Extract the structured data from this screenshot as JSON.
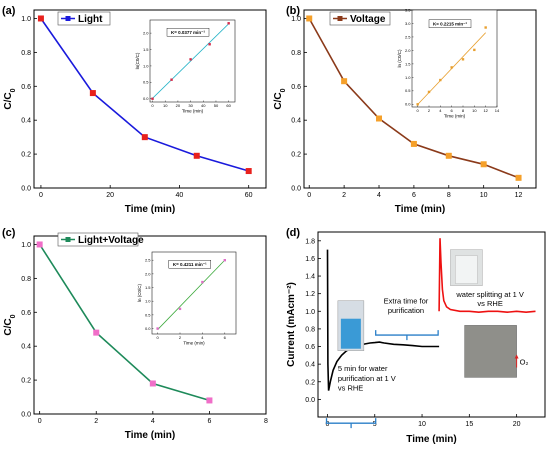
{
  "chart_data": [
    {
      "panel": "(a)",
      "type": "line",
      "xlabel": "Time (min)",
      "ylabel": "C/C0",
      "xlim": [
        -2,
        65
      ],
      "ylim": [
        0,
        1.05
      ],
      "xticks": [
        0,
        20,
        40,
        60
      ],
      "yticks": [
        0.0,
        0.2,
        0.4,
        0.6,
        0.8,
        1.0
      ],
      "color": "#1a1adc",
      "marker": "#e8211d",
      "legend": "top-left",
      "series": [
        {
          "name": "Light",
          "x": [
            0,
            15,
            30,
            45,
            60
          ],
          "y": [
            1.0,
            0.56,
            0.3,
            0.19,
            0.1
          ]
        }
      ],
      "inset": {
        "xlabel": "Time (min)",
        "ylabel": "ln(C0/C)",
        "xlim": [
          -2,
          65
        ],
        "ylim": [
          -0.1,
          2.4
        ],
        "xticks": [
          0,
          10,
          20,
          30,
          40,
          50,
          60
        ],
        "yticks": [
          0.0,
          0.5,
          1.0,
          1.5,
          2.0
        ],
        "color": "#26b4c8",
        "marker": "#d62a4a",
        "x": [
          0,
          15,
          30,
          45,
          60
        ],
        "y": [
          0.0,
          0.58,
          1.2,
          1.66,
          2.3
        ],
        "annotation": "K= 0.0377 min⁻¹"
      }
    },
    {
      "panel": "(b)",
      "type": "line",
      "xlabel": "Time (min)",
      "ylabel": "C/C0",
      "xlim": [
        -0.3,
        13
      ],
      "ylim": [
        0,
        1.05
      ],
      "xticks": [
        0,
        2,
        4,
        6,
        8,
        10,
        12
      ],
      "yticks": [
        0.0,
        0.2,
        0.4,
        0.6,
        0.8,
        1.0
      ],
      "color": "#8b3a1a",
      "marker": "#f5a02a",
      "legend": "top-left",
      "series": [
        {
          "name": "Voltage",
          "x": [
            0,
            2,
            4,
            6,
            8,
            10,
            12
          ],
          "y": [
            1.0,
            0.63,
            0.41,
            0.26,
            0.19,
            0.14,
            0.06
          ]
        }
      ],
      "inset": {
        "xlabel": "Time (min)",
        "ylabel": "ln (C0/C)",
        "xlim": [
          -1,
          14
        ],
        "ylim": [
          -0.1,
          3.5
        ],
        "xticks": [
          0,
          2,
          4,
          6,
          8,
          10,
          12,
          14
        ],
        "yticks": [
          0.0,
          0.5,
          1.0,
          1.5,
          2.0,
          2.5,
          3.0,
          3.5
        ],
        "color": "#e8a030",
        "marker": "#e8a030",
        "x": [
          0,
          2,
          4,
          6,
          8,
          10,
          12
        ],
        "y": [
          0.0,
          0.46,
          0.9,
          1.37,
          1.67,
          2.02,
          2.85
        ],
        "annotation": "K= 0.2215 min⁻¹"
      }
    },
    {
      "panel": "(c)",
      "type": "line",
      "xlabel": "Time (min)",
      "ylabel": "C/C0",
      "xlim": [
        -0.2,
        8
      ],
      "ylim": [
        0,
        1.05
      ],
      "xticks": [
        0,
        2,
        4,
        6,
        8
      ],
      "yticks": [
        0.0,
        0.2,
        0.4,
        0.6,
        0.8,
        1.0
      ],
      "color": "#1e8a5a",
      "marker": "#f06ec8",
      "legend": "top-left",
      "series": [
        {
          "name": "Light+Voltage",
          "x": [
            0,
            2,
            4,
            6
          ],
          "y": [
            1.0,
            0.48,
            0.18,
            0.08
          ]
        }
      ],
      "inset": {
        "xlabel": "Time (min)",
        "ylabel": "ln (C0/C)",
        "xlim": [
          -0.5,
          7
        ],
        "ylim": [
          -0.2,
          2.8
        ],
        "xticks": [
          0,
          2,
          4,
          6
        ],
        "yticks": [
          0.0,
          0.5,
          1.0,
          1.5,
          2.0,
          2.5
        ],
        "color": "#3caa3c",
        "marker": "#e06ec8",
        "x": [
          0,
          2,
          4,
          6
        ],
        "y": [
          0.0,
          0.72,
          1.7,
          2.5
        ],
        "annotation": "K= 0.4211 min⁻¹"
      }
    },
    {
      "panel": "(d)",
      "type": "line",
      "xlabel": "Time (min)",
      "ylabel": "Current (mAcm⁻²)",
      "xlim": [
        -1,
        23
      ],
      "ylim": [
        -0.2,
        1.9
      ],
      "xticks": [
        0,
        5,
        10,
        15,
        20
      ],
      "yticks": [
        0.0,
        0.2,
        0.4,
        0.6,
        0.8,
        1.0,
        1.2,
        1.4,
        1.6,
        1.8
      ],
      "series": [
        {
          "x": [
            0,
            0.05,
            0.12,
            0.3,
            0.6,
            1,
            1.5,
            2,
            2.5,
            3,
            3.5,
            4,
            4.5,
            5,
            5.5,
            6,
            7,
            8,
            9,
            10,
            11,
            11.5,
            11.8
          ],
          "y": [
            1.7,
            0.4,
            0.1,
            0.2,
            0.33,
            0.43,
            0.5,
            0.55,
            0.58,
            0.6,
            0.62,
            0.63,
            0.64,
            0.645,
            0.65,
            0.64,
            0.625,
            0.62,
            0.61,
            0.6,
            0.6,
            0.6,
            0.6
          ],
          "color": "#000000"
        },
        {
          "x": [
            11.8,
            11.9,
            12.0,
            12.15,
            12.3,
            12.6,
            13,
            14,
            15,
            16,
            17,
            18,
            19,
            20,
            21,
            22
          ],
          "y": [
            1.0,
            1.83,
            1.55,
            1.25,
            1.12,
            1.05,
            1.02,
            1.0,
            1.0,
            0.99,
            1.0,
            1.0,
            0.99,
            1.0,
            0.99,
            1.0
          ],
          "color": "#ee1111"
        }
      ],
      "annotations": [
        "Extra time for",
        "purification",
        "water splitting at 1 V",
        "vs RHE",
        "5 min for water",
        "purification at 1 V",
        "vs RHE",
        "O₂"
      ]
    }
  ]
}
